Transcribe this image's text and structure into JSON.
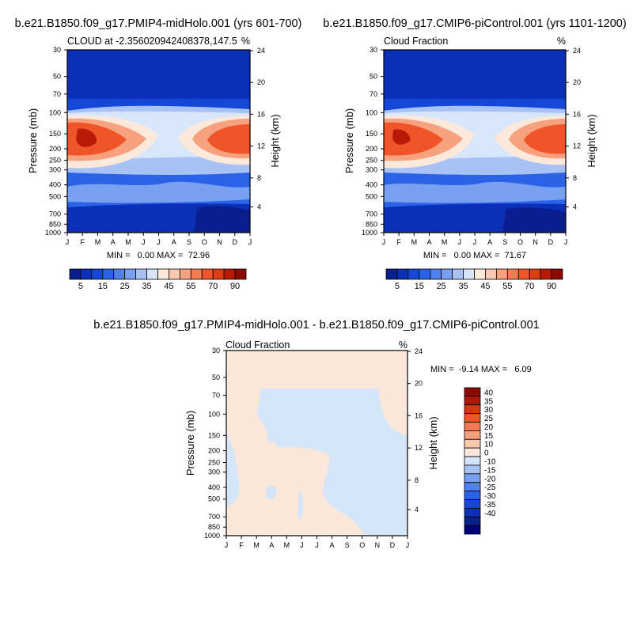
{
  "colors": {
    "seq_palette": [
      "#0a1f8e",
      "#0c2fb8",
      "#1546d6",
      "#2a62e8",
      "#4f82f0",
      "#7aa0f2",
      "#a8c2f5",
      "#d7e6fb",
      "#fde9dc",
      "#f9c8ae",
      "#f6a27e",
      "#f37b53",
      "#ef5528",
      "#e03c12",
      "#b81a08",
      "#8a0a00"
    ],
    "diff_palette": [
      "#00007a",
      "#0a1f8e",
      "#0c2fb8",
      "#1546d6",
      "#2a62e8",
      "#4f82f0",
      "#7aa0f2",
      "#a8c2f5",
      "#d6e6fa",
      "#fbe8d8",
      "#f9c8ae",
      "#f6a27e",
      "#f37b53",
      "#ef5528",
      "#d43a10",
      "#b01605",
      "#8a0a00"
    ]
  },
  "chart_data": [
    {
      "type": "heatmap",
      "title": "b.e21.B1850.f09_g17.PMIP4-midHolo.001 (yrs 601-700)",
      "subtitle_left": "CLOUD at -2.356020942408378,147.5",
      "subtitle_right": "%",
      "ylabel": "Pressure (mb)",
      "ylabel_right": "Height (km)",
      "x_ticks": [
        "J",
        "F",
        "M",
        "A",
        "M",
        "J",
        "J",
        "A",
        "S",
        "O",
        "N",
        "D",
        "J"
      ],
      "y_ticks": [
        "30",
        "50",
        "70",
        "100",
        "150",
        "200",
        "250",
        "300",
        "400",
        "500",
        "700",
        "850",
        "1000"
      ],
      "y_ticks_right": [
        "24",
        "20",
        "16",
        "12",
        "8",
        "4"
      ],
      "stats": "MIN =   0.00 MAX =  72.96",
      "min": 0.0,
      "max": 72.96,
      "colorbar_labels": [
        "5",
        "15",
        "25",
        "35",
        "45",
        "55",
        "70",
        "90"
      ]
    },
    {
      "type": "heatmap",
      "title": "b.e21.B1850.f09_g17.CMIP6-piControl.001 (yrs 1101-1200)",
      "subtitle_left": "Cloud Fraction",
      "subtitle_right": "%",
      "ylabel": "Pressure (mb)",
      "ylabel_right": "Height (km)",
      "x_ticks": [
        "J",
        "F",
        "M",
        "A",
        "M",
        "J",
        "J",
        "A",
        "S",
        "O",
        "N",
        "D",
        "J"
      ],
      "y_ticks": [
        "30",
        "50",
        "70",
        "100",
        "150",
        "200",
        "250",
        "300",
        "400",
        "500",
        "700",
        "850",
        "1000"
      ],
      "y_ticks_right": [
        "24",
        "20",
        "16",
        "12",
        "8",
        "4"
      ],
      "stats": "MIN =   0.00 MAX =  71.67",
      "min": 0.0,
      "max": 71.67,
      "colorbar_labels": [
        "5",
        "15",
        "25",
        "35",
        "45",
        "55",
        "70",
        "90"
      ]
    },
    {
      "type": "heatmap",
      "title": "b.e21.B1850.f09_g17.PMIP4-midHolo.001 - b.e21.B1850.f09_g17.CMIP6-piControl.001",
      "subtitle_left": "Cloud Fraction",
      "subtitle_right": "%",
      "ylabel": "Pressure (mb)",
      "ylabel_right": "Height (km)",
      "x_ticks": [
        "J",
        "F",
        "M",
        "A",
        "M",
        "J",
        "J",
        "A",
        "S",
        "O",
        "N",
        "D",
        "J"
      ],
      "y_ticks": [
        "30",
        "50",
        "70",
        "100",
        "150",
        "200",
        "250",
        "300",
        "400",
        "500",
        "700",
        "850",
        "1000"
      ],
      "y_ticks_right": [
        "24",
        "20",
        "16",
        "12",
        "8",
        "4"
      ],
      "stats": "MIN =  -9.14 MAX =   6.09",
      "min": -9.14,
      "max": 6.09,
      "colorbar_labels": [
        "40",
        "35",
        "30",
        "25",
        "20",
        "15",
        "10",
        "0",
        "-10",
        "-15",
        "-20",
        "-25",
        "-30",
        "-35",
        "-40"
      ]
    }
  ]
}
